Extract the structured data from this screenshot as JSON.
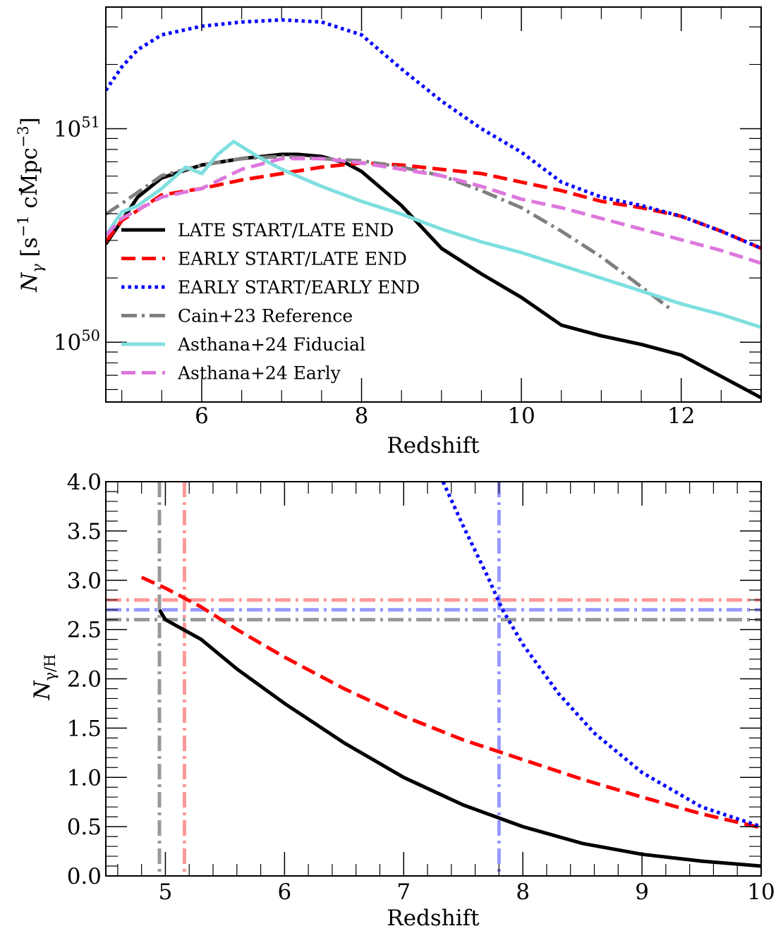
{
  "chart_data": [
    {
      "type": "line",
      "title": "",
      "xlabel": "Redshift",
      "ylabel_main": "N",
      "ylabel_sub": "γ",
      "ylabel_units": " [s",
      "ylabel_units_exp": "−1",
      "ylabel_units2": " cMpc",
      "ylabel_units2_exp": "−3",
      "ylabel_units_close": "]",
      "xlim": [
        4.8,
        13.0
      ],
      "ylim_log10": [
        49.72,
        51.57
      ],
      "yscale": "log",
      "xticks": [
        6,
        8,
        10,
        12
      ],
      "yticks": [
        {
          "base": "10",
          "exp": "50",
          "log10": 50
        },
        {
          "base": "10",
          "exp": "51",
          "log10": 51
        }
      ],
      "legend_position": "lower-left",
      "series": [
        {
          "name": "LATE START/LATE END",
          "color": "#000000",
          "dash": "solid",
          "width": 5,
          "x": [
            4.8,
            5.0,
            5.2,
            5.5,
            6.0,
            6.5,
            7.0,
            7.2,
            7.5,
            7.8,
            8.0,
            8.5,
            9.0,
            9.5,
            10.0,
            10.5,
            11.0,
            11.5,
            12.0,
            12.5,
            13.0
          ],
          "y": [
            50.46,
            50.57,
            50.68,
            50.77,
            50.83,
            50.86,
            50.88,
            50.88,
            50.87,
            50.84,
            50.8,
            50.64,
            50.44,
            50.32,
            50.21,
            50.08,
            50.03,
            49.99,
            49.94,
            49.84,
            49.74
          ]
        },
        {
          "name": "EARLY START/LATE END",
          "color": "#ff0000",
          "dash": "dashed",
          "width": 5,
          "x": [
            4.8,
            5.0,
            5.5,
            6.0,
            6.5,
            7.0,
            7.5,
            8.0,
            8.5,
            9.0,
            9.5,
            10.0,
            10.5,
            11.0,
            11.5,
            12.0,
            12.5,
            13.0
          ],
          "y": [
            50.47,
            50.57,
            50.69,
            50.72,
            50.76,
            50.79,
            50.82,
            50.84,
            50.83,
            50.81,
            50.79,
            50.75,
            50.71,
            50.66,
            50.63,
            50.59,
            50.52,
            50.44
          ]
        },
        {
          "name": "EARLY START/EARLY END",
          "color": "#0000ff",
          "dash": "dotted",
          "width": 5,
          "x": [
            4.8,
            5.0,
            5.2,
            5.5,
            6.0,
            6.5,
            7.0,
            7.5,
            8.0,
            8.5,
            9.0,
            9.5,
            10.0,
            10.5,
            11.0,
            11.5,
            12.0,
            12.5,
            13.0
          ],
          "y": [
            51.18,
            51.29,
            51.37,
            51.44,
            51.48,
            51.5,
            51.51,
            51.5,
            51.44,
            51.28,
            51.13,
            51.0,
            50.89,
            50.75,
            50.68,
            50.64,
            50.59,
            50.52,
            50.44
          ]
        },
        {
          "name": "Cain+23 Reference",
          "color": "#808080",
          "dash": "dashdot",
          "width": 5,
          "x": [
            4.8,
            5.0,
            5.5,
            6.0,
            6.5,
            7.0,
            7.5,
            8.0,
            8.5,
            9.0,
            9.5,
            10.0,
            10.5,
            11.0,
            11.5,
            11.85
          ],
          "y": [
            50.6,
            50.65,
            50.78,
            50.83,
            50.86,
            50.87,
            50.86,
            50.85,
            50.82,
            50.78,
            50.71,
            50.63,
            50.52,
            50.4,
            50.26,
            50.16
          ]
        },
        {
          "name": "Asthana+24 Fiducial",
          "color": "#7fdfdf",
          "dash": "solid",
          "width": 5,
          "x": [
            4.8,
            5.0,
            5.2,
            5.5,
            5.8,
            6.0,
            6.2,
            6.4,
            6.7,
            7.0,
            7.5,
            8.0,
            8.5,
            9.0,
            9.5,
            10.0,
            10.5,
            11.0,
            11.5,
            12.0,
            12.5,
            13.0
          ],
          "y": [
            50.5,
            50.61,
            50.64,
            50.72,
            50.82,
            50.79,
            50.88,
            50.94,
            50.87,
            50.81,
            50.73,
            50.66,
            50.6,
            50.53,
            50.47,
            50.42,
            50.36,
            50.3,
            50.24,
            50.18,
            50.13,
            50.07
          ]
        },
        {
          "name": "Asthana+24 Early",
          "color": "#dd77dd",
          "dash": "dashed",
          "width": 5,
          "x": [
            4.8,
            5.0,
            5.5,
            6.0,
            6.5,
            7.0,
            7.5,
            8.0,
            8.5,
            9.0,
            9.5,
            10.0,
            10.5,
            11.0,
            11.5,
            12.0,
            12.5,
            13.0
          ],
          "y": [
            50.5,
            50.58,
            50.68,
            50.72,
            50.81,
            50.86,
            50.86,
            50.84,
            50.81,
            50.78,
            50.73,
            50.67,
            50.63,
            50.58,
            50.53,
            50.48,
            50.43,
            50.37
          ]
        }
      ]
    },
    {
      "type": "line",
      "title": "",
      "xlabel": "Redshift",
      "ylabel_main": "N",
      "ylabel_sub": "γ/H",
      "xlim": [
        4.5,
        10.0
      ],
      "ylim": [
        0.0,
        4.0
      ],
      "xticks": [
        5,
        6,
        7,
        8,
        9,
        10
      ],
      "yticks": [
        "0.0",
        "0.5",
        "1.0",
        "1.5",
        "2.0",
        "2.5",
        "3.0",
        "3.5",
        "4.0"
      ],
      "series": [
        {
          "name": "LATE START/LATE END",
          "color": "#000000",
          "dash": "solid",
          "width": 5,
          "x": [
            4.95,
            5.0,
            5.3,
            5.6,
            6.0,
            6.5,
            7.0,
            7.5,
            8.0,
            8.5,
            9.0,
            9.5,
            10.0
          ],
          "y": [
            2.7,
            2.6,
            2.4,
            2.1,
            1.75,
            1.35,
            1.0,
            0.72,
            0.5,
            0.33,
            0.22,
            0.15,
            0.1
          ]
        },
        {
          "name": "EARLY START/LATE END",
          "color": "#ff0000",
          "dash": "dashed",
          "width": 5,
          "x": [
            4.8,
            5.0,
            5.3,
            5.6,
            6.0,
            6.5,
            7.0,
            7.5,
            8.0,
            8.5,
            9.0,
            9.5,
            10.0
          ],
          "y": [
            3.03,
            2.92,
            2.73,
            2.5,
            2.22,
            1.9,
            1.62,
            1.38,
            1.18,
            0.98,
            0.8,
            0.63,
            0.49
          ]
        },
        {
          "name": "EARLY START/EARLY END",
          "color": "#0000ff",
          "dash": "dotted",
          "width": 5,
          "x": [
            7.33,
            7.5,
            7.7,
            7.83,
            8.0,
            8.3,
            8.6,
            9.0,
            9.5,
            10.0
          ],
          "y": [
            4.0,
            3.55,
            3.05,
            2.7,
            2.35,
            1.85,
            1.45,
            1.05,
            0.7,
            0.5
          ]
        }
      ],
      "reference_lines": [
        {
          "orientation": "horizontal",
          "value": 2.6,
          "color": "#999999"
        },
        {
          "orientation": "horizontal",
          "value": 2.7,
          "color": "#9999ff"
        },
        {
          "orientation": "horizontal",
          "value": 2.8,
          "color": "#ff9999"
        },
        {
          "orientation": "vertical",
          "value": 4.95,
          "color": "#999999"
        },
        {
          "orientation": "vertical",
          "value": 5.16,
          "color": "#ff9999"
        },
        {
          "orientation": "vertical",
          "value": 7.8,
          "color": "#9999ff"
        }
      ]
    }
  ]
}
